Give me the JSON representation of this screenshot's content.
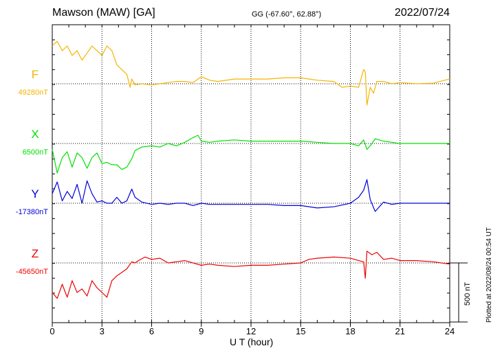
{
  "header": {
    "station": "Mawson (MAW)  [GA]",
    "coords": "GG (-67.60°,  62.88°)",
    "date": "2022/07/24"
  },
  "footer": {
    "plotted": "Plotted at 2022/08/24 00:54 UT"
  },
  "colors": {
    "F": "#f5b400",
    "X": "#00e000",
    "Y": "#0000dd",
    "Z": "#ee0000"
  },
  "chart_data": {
    "type": "line",
    "xlabel": "U T (hour)",
    "xlim": [
      0,
      24
    ],
    "xticks": [
      0,
      3,
      6,
      9,
      12,
      15,
      18,
      21,
      24
    ],
    "grid": true,
    "scale_bar": {
      "value": 500,
      "label": "500 nT"
    },
    "series": [
      {
        "name": "F",
        "baseline": 49280,
        "baseline_label": "49280nT",
        "x": [
          0,
          0.3,
          0.6,
          0.9,
          1.2,
          1.5,
          1.8,
          2.1,
          2.4,
          2.7,
          3.0,
          3.3,
          3.6,
          3.9,
          4.2,
          4.5,
          4.7,
          4.8,
          5.0,
          5.4,
          6.0,
          6.5,
          7.0,
          7.5,
          8.0,
          8.5,
          9.0,
          9.5,
          10.0,
          11.0,
          12.0,
          13.0,
          14.0,
          15.0,
          16.0,
          17.0,
          17.5,
          18.0,
          18.5,
          18.8,
          18.9,
          19.0,
          19.2,
          19.4,
          19.6,
          20.0,
          20.5,
          21.0,
          22.0,
          23.0,
          24.0
        ],
        "y": [
          49600,
          49640,
          49560,
          49600,
          49520,
          49560,
          49480,
          49540,
          49600,
          49560,
          49520,
          49600,
          49560,
          49440,
          49400,
          49360,
          49250,
          49320,
          49270,
          49280,
          49270,
          49280,
          49290,
          49300,
          49300,
          49290,
          49340,
          49310,
          49300,
          49320,
          49320,
          49320,
          49330,
          49330,
          49310,
          49300,
          49250,
          49260,
          49250,
          49400,
          49380,
          49100,
          49250,
          49200,
          49300,
          49300,
          49280,
          49290,
          49280,
          49285,
          49320
        ]
      },
      {
        "name": "X",
        "baseline": 6500,
        "baseline_label": "6500nT",
        "x": [
          0,
          0.3,
          0.6,
          0.9,
          1.2,
          1.5,
          1.8,
          2.1,
          2.4,
          2.7,
          3.0,
          3.3,
          3.6,
          3.9,
          4.2,
          4.5,
          4.8,
          5.0,
          5.4,
          6.0,
          6.5,
          7.0,
          7.5,
          8.0,
          8.5,
          8.8,
          9.0,
          9.5,
          10.0,
          11.0,
          12.0,
          13.0,
          14.0,
          15.0,
          16.0,
          17.0,
          18.0,
          18.5,
          18.8,
          19.0,
          19.2,
          19.5,
          20.0,
          20.5,
          21.0,
          22.0,
          23.0,
          24.0
        ],
        "y": [
          6450,
          6250,
          6380,
          6430,
          6300,
          6420,
          6380,
          6290,
          6380,
          6420,
          6330,
          6340,
          6320,
          6320,
          6280,
          6300,
          6370,
          6440,
          6470,
          6480,
          6470,
          6500,
          6480,
          6510,
          6550,
          6570,
          6520,
          6510,
          6520,
          6530,
          6520,
          6520,
          6520,
          6520,
          6510,
          6500,
          6500,
          6480,
          6530,
          6450,
          6480,
          6540,
          6520,
          6510,
          6500,
          6500,
          6500,
          6500
        ]
      },
      {
        "name": "Y",
        "baseline": -17380,
        "baseline_label": "-17380nT",
        "x": [
          0,
          0.3,
          0.6,
          0.9,
          1.2,
          1.5,
          1.8,
          2.1,
          2.4,
          2.7,
          3.0,
          3.3,
          3.6,
          3.9,
          4.2,
          4.5,
          4.8,
          5.0,
          5.4,
          6.0,
          6.5,
          7.0,
          7.5,
          8.0,
          8.5,
          9.0,
          9.5,
          10.0,
          11.0,
          12.0,
          13.0,
          14.0,
          15.0,
          16.0,
          17.0,
          18.0,
          18.5,
          18.8,
          19.0,
          19.2,
          19.5,
          20.0,
          20.5,
          21.0,
          22.0,
          23.0,
          24.0
        ],
        "y": [
          -17300,
          -17200,
          -17360,
          -17280,
          -17340,
          -17220,
          -17380,
          -17190,
          -17300,
          -17370,
          -17360,
          -17380,
          -17380,
          -17330,
          -17380,
          -17360,
          -17260,
          -17330,
          -17370,
          -17390,
          -17380,
          -17390,
          -17380,
          -17380,
          -17400,
          -17380,
          -17390,
          -17390,
          -17390,
          -17390,
          -17390,
          -17400,
          -17400,
          -17420,
          -17410,
          -17380,
          -17330,
          -17270,
          -17180,
          -17350,
          -17450,
          -17370,
          -17390,
          -17380,
          -17380,
          -17380,
          -17380
        ]
      },
      {
        "name": "Z",
        "baseline": -45650,
        "baseline_label": "-45650nT",
        "x": [
          0,
          0.3,
          0.6,
          0.9,
          1.2,
          1.5,
          1.8,
          2.1,
          2.4,
          2.7,
          3.0,
          3.3,
          3.6,
          3.9,
          4.2,
          4.5,
          4.8,
          5.0,
          5.2,
          5.6,
          6.0,
          6.5,
          7.0,
          7.5,
          8.0,
          8.5,
          9.0,
          9.5,
          10.0,
          11.0,
          12.0,
          13.0,
          14.0,
          15.0,
          15.5,
          16.0,
          17.0,
          18.0,
          18.5,
          18.8,
          18.9,
          19.0,
          19.3,
          19.6,
          20.0,
          20.5,
          21.0,
          22.0,
          23.0,
          24.0
        ],
        "y": [
          -45900,
          -45950,
          -45830,
          -45940,
          -45800,
          -45900,
          -45870,
          -45930,
          -45800,
          -45860,
          -45900,
          -45940,
          -45800,
          -45760,
          -45730,
          -45700,
          -45640,
          -45650,
          -45630,
          -45600,
          -45620,
          -45610,
          -45650,
          -45640,
          -45630,
          -45650,
          -45670,
          -45660,
          -45670,
          -45680,
          -45670,
          -45670,
          -45660,
          -45650,
          -45620,
          -45610,
          -45600,
          -45610,
          -45630,
          -45640,
          -45780,
          -45550,
          -45580,
          -45560,
          -45620,
          -45610,
          -45630,
          -45630,
          -45640,
          -45660
        ]
      }
    ]
  }
}
